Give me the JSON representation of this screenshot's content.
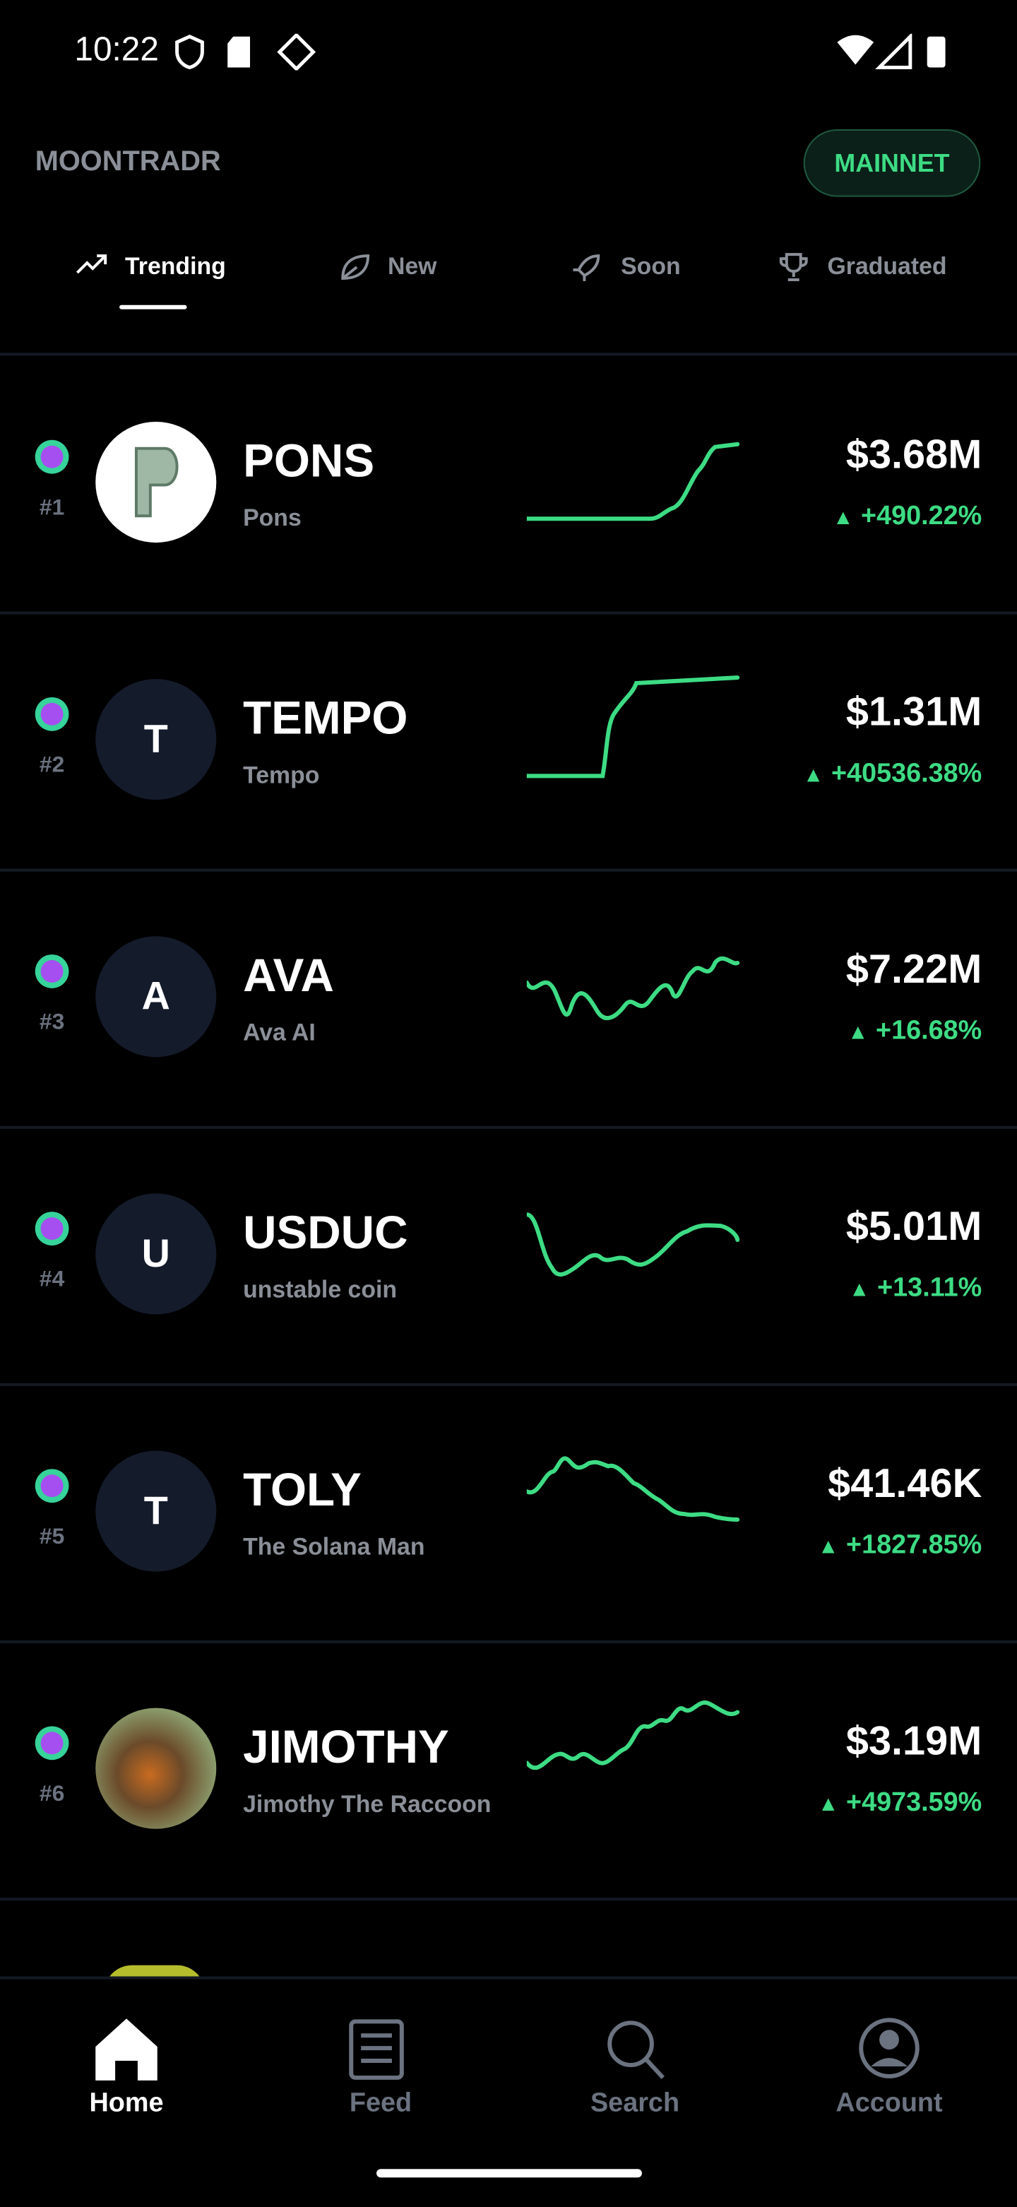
{
  "status_bar": {
    "time": "10:22"
  },
  "header": {
    "app_name": "MOONTRADR",
    "network": "MAINNET"
  },
  "tabs": [
    "Trending",
    "New",
    "Soon",
    "Graduated"
  ],
  "tokens": [
    {
      "rank": "#1",
      "avatar": null,
      "ticker": "PONS",
      "name": "Pons",
      "price": "$3.68M",
      "change": "+490.22%"
    },
    {
      "rank": "#2",
      "avatar": "T",
      "ticker": "TEMPO",
      "name": "Tempo",
      "price": "$1.31M",
      "change": "+40536.38%"
    },
    {
      "rank": "#3",
      "avatar": "A",
      "ticker": "AVA",
      "name": "Ava AI",
      "price": "$7.22M",
      "change": "+16.68%"
    },
    {
      "rank": "#4",
      "avatar": "U",
      "ticker": "USDUC",
      "name": "unstable coin",
      "price": "$5.01M",
      "change": "+13.11%"
    },
    {
      "rank": "#5",
      "avatar": "T",
      "ticker": "TOLY",
      "name": "The Solana Man",
      "price": "$41.46K",
      "change": "+1827.85%"
    },
    {
      "rank": "#6",
      "avatar": null,
      "ticker": "JIMOTHY",
      "name": "Jimothy The Raccoon",
      "price": "$3.19M",
      "change": "+4973.59%"
    }
  ],
  "bottom_nav": [
    "Home",
    "Feed",
    "Search",
    "Account"
  ]
}
